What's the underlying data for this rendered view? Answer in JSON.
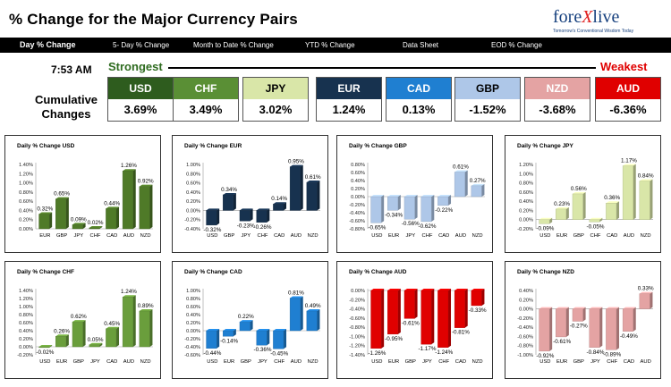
{
  "header": {
    "title": "% Change for the Major Currency Pairs",
    "logo_main": "fore",
    "logo_x": "X",
    "logo_end": "live",
    "logo_tagline": "Tomorrow's Conventional Wisdom Today"
  },
  "nav": {
    "items": [
      {
        "label": "Day % Change",
        "active": true
      },
      {
        "label": "5- Day % Change",
        "active": false
      },
      {
        "label": "Month to Date % Change",
        "active": false
      },
      {
        "label": "YTD % Change",
        "active": false
      },
      {
        "label": "Data Sheet",
        "active": false
      },
      {
        "label": "EOD % Change",
        "active": false
      }
    ]
  },
  "summary": {
    "time": "7:53 AM",
    "strongest_label": "Strongest",
    "weakest_label": "Weakest",
    "cumulative_label": "Cumulative Changes",
    "cards": [
      {
        "currency": "USD",
        "value": "3.69%",
        "color": "#2e5c1e"
      },
      {
        "currency": "CHF",
        "value": "3.49%",
        "color": "#5a8f35"
      },
      {
        "currency": "JPY",
        "value": "3.02%",
        "color": "#d9e6a8"
      },
      {
        "currency": "EUR",
        "value": "1.24%",
        "color": "#17324f"
      },
      {
        "currency": "CAD",
        "value": "0.13%",
        "color": "#1f7fd1"
      },
      {
        "currency": "GBP",
        "value": "-1.52%",
        "color": "#aec7e8"
      },
      {
        "currency": "NZD",
        "value": "-3.68%",
        "color": "#e4a3a3"
      },
      {
        "currency": "AUD",
        "value": "-6.36%",
        "color": "#e00000"
      }
    ]
  },
  "chart_data": [
    {
      "type": "bar",
      "title": "Daily % Change USD",
      "categories": [
        "EUR",
        "GBP",
        "JPY",
        "CHF",
        "CAD",
        "AUD",
        "NZD"
      ],
      "values": [
        0.32,
        0.65,
        0.09,
        0.02,
        0.44,
        1.26,
        0.92
      ],
      "labels": [
        "0.32%",
        "0.65%",
        "0.09%",
        "0.02%",
        "0.44%",
        "1.26%",
        "0.92%"
      ],
      "ylim": [
        0,
        1.4
      ],
      "ticks": [
        "1.40%",
        "1.20%",
        "1.00%",
        "0.80%",
        "0.60%",
        "0.40%",
        "0.20%",
        "0.00%"
      ],
      "color": "#4f7a28"
    },
    {
      "type": "bar",
      "title": "Daily % Change EUR",
      "categories": [
        "USD",
        "GBP",
        "JPY",
        "CHF",
        "CAD",
        "AUD",
        "NZD"
      ],
      "values": [
        -0.32,
        0.34,
        -0.23,
        -0.26,
        0.14,
        0.95,
        0.61
      ],
      "labels": [
        "-0.32%",
        "0.34%",
        "-0.23%",
        "-0.26%",
        "0.14%",
        "0.95%",
        "0.61%"
      ],
      "ylim": [
        -0.4,
        1.0
      ],
      "ticks": [
        "1.00%",
        "0.80%",
        "0.60%",
        "0.40%",
        "0.20%",
        "0.00%",
        "-0.20%",
        "-0.40%"
      ],
      "color": "#17324f"
    },
    {
      "type": "bar",
      "title": "Daily % Change GBP",
      "categories": [
        "USD",
        "EUR",
        "JPY",
        "CHF",
        "CAD",
        "AUD",
        "NZD"
      ],
      "values": [
        -0.65,
        -0.34,
        -0.56,
        -0.62,
        -0.22,
        0.61,
        0.27
      ],
      "labels": [
        "-0.65%",
        "-0.34%",
        "-0.56%",
        "-0.62%",
        "-0.22%",
        "0.61%",
        "0.27%"
      ],
      "ylim": [
        -0.8,
        0.8
      ],
      "ticks": [
        "0.80%",
        "0.60%",
        "0.40%",
        "0.20%",
        "0.00%",
        "-0.20%",
        "-0.40%",
        "-0.60%",
        "-0.80%"
      ],
      "color": "#aec7e8"
    },
    {
      "type": "bar",
      "title": "Daily % Change JPY",
      "categories": [
        "USD",
        "EUR",
        "GBP",
        "CHF",
        "CAD",
        "AUD",
        "NZD"
      ],
      "values": [
        -0.09,
        0.23,
        0.56,
        -0.05,
        0.36,
        1.17,
        0.84
      ],
      "labels": [
        "-0.09%",
        "0.23%",
        "0.56%",
        "-0.05%",
        "0.36%",
        "1.17%",
        "0.84%"
      ],
      "ylim": [
        -0.2,
        1.2
      ],
      "ticks": [
        "1.20%",
        "1.00%",
        "0.80%",
        "0.60%",
        "0.40%",
        "0.20%",
        "0.00%",
        "-0.20%"
      ],
      "color": "#d9e6a8"
    },
    {
      "type": "bar",
      "title": "Daily % Change CHF",
      "categories": [
        "USD",
        "EUR",
        "GBP",
        "JPY",
        "CAD",
        "AUD",
        "NZD"
      ],
      "values": [
        -0.02,
        0.26,
        0.62,
        0.05,
        0.45,
        1.24,
        0.89
      ],
      "labels": [
        "-0.02%",
        "0.26%",
        "0.62%",
        "0.05%",
        "0.45%",
        "1.24%",
        "0.89%"
      ],
      "ylim": [
        -0.2,
        1.4
      ],
      "ticks": [
        "1.40%",
        "1.20%",
        "1.00%",
        "0.80%",
        "0.60%",
        "0.40%",
        "0.20%",
        "0.00%",
        "-0.20%"
      ],
      "color": "#6a9e3c"
    },
    {
      "type": "bar",
      "title": "Daily % Change CAD",
      "categories": [
        "USD",
        "EUR",
        "GBP",
        "JPY",
        "CHF",
        "AUD",
        "NZD"
      ],
      "values": [
        -0.44,
        -0.14,
        0.22,
        -0.36,
        -0.45,
        0.81,
        0.49
      ],
      "labels": [
        "-0.44%",
        "-0.14%",
        "0.22%",
        "-0.36%",
        "-0.45%",
        "0.81%",
        "0.49%"
      ],
      "ylim": [
        -0.6,
        1.0
      ],
      "ticks": [
        "1.00%",
        "0.80%",
        "0.60%",
        "0.40%",
        "0.20%",
        "0.00%",
        "-0.20%",
        "-0.40%",
        "-0.60%"
      ],
      "color": "#1f7fd1"
    },
    {
      "type": "bar",
      "title": "Daily % Change AUD",
      "categories": [
        "USD",
        "EUR",
        "GBP",
        "JPY",
        "CHF",
        "CAD",
        "NZD"
      ],
      "values": [
        -1.26,
        -0.95,
        -0.61,
        -1.17,
        -1.24,
        -0.81,
        -0.33
      ],
      "labels": [
        "-1.26%",
        "-0.95%",
        "-0.61%",
        "-1.17%",
        "-1.24%",
        "-0.81%",
        "-0.33%"
      ],
      "ylim": [
        -1.4,
        0
      ],
      "ticks": [
        "0.00%",
        "-0.20%",
        "-0.40%",
        "-0.60%",
        "-0.80%",
        "-1.00%",
        "-1.20%",
        "-1.40%"
      ],
      "color": "#e00000"
    },
    {
      "type": "bar",
      "title": "Daily % Change NZD",
      "categories": [
        "USD",
        "EUR",
        "GBP",
        "JPY",
        "CHF",
        "CAD",
        "AUD"
      ],
      "values": [
        -0.92,
        -0.61,
        -0.27,
        -0.84,
        -0.89,
        -0.49,
        0.33
      ],
      "labels": [
        "-0.92%",
        "-0.61%",
        "-0.27%",
        "-0.84%",
        "-0.89%",
        "-0.49%",
        "0.33%"
      ],
      "ylim": [
        -1.0,
        0.4
      ],
      "ticks": [
        "0.40%",
        "0.20%",
        "0.00%",
        "-0.20%",
        "-0.40%",
        "-0.60%",
        "-0.80%",
        "-1.00%"
      ],
      "color": "#e4a3a3"
    }
  ]
}
